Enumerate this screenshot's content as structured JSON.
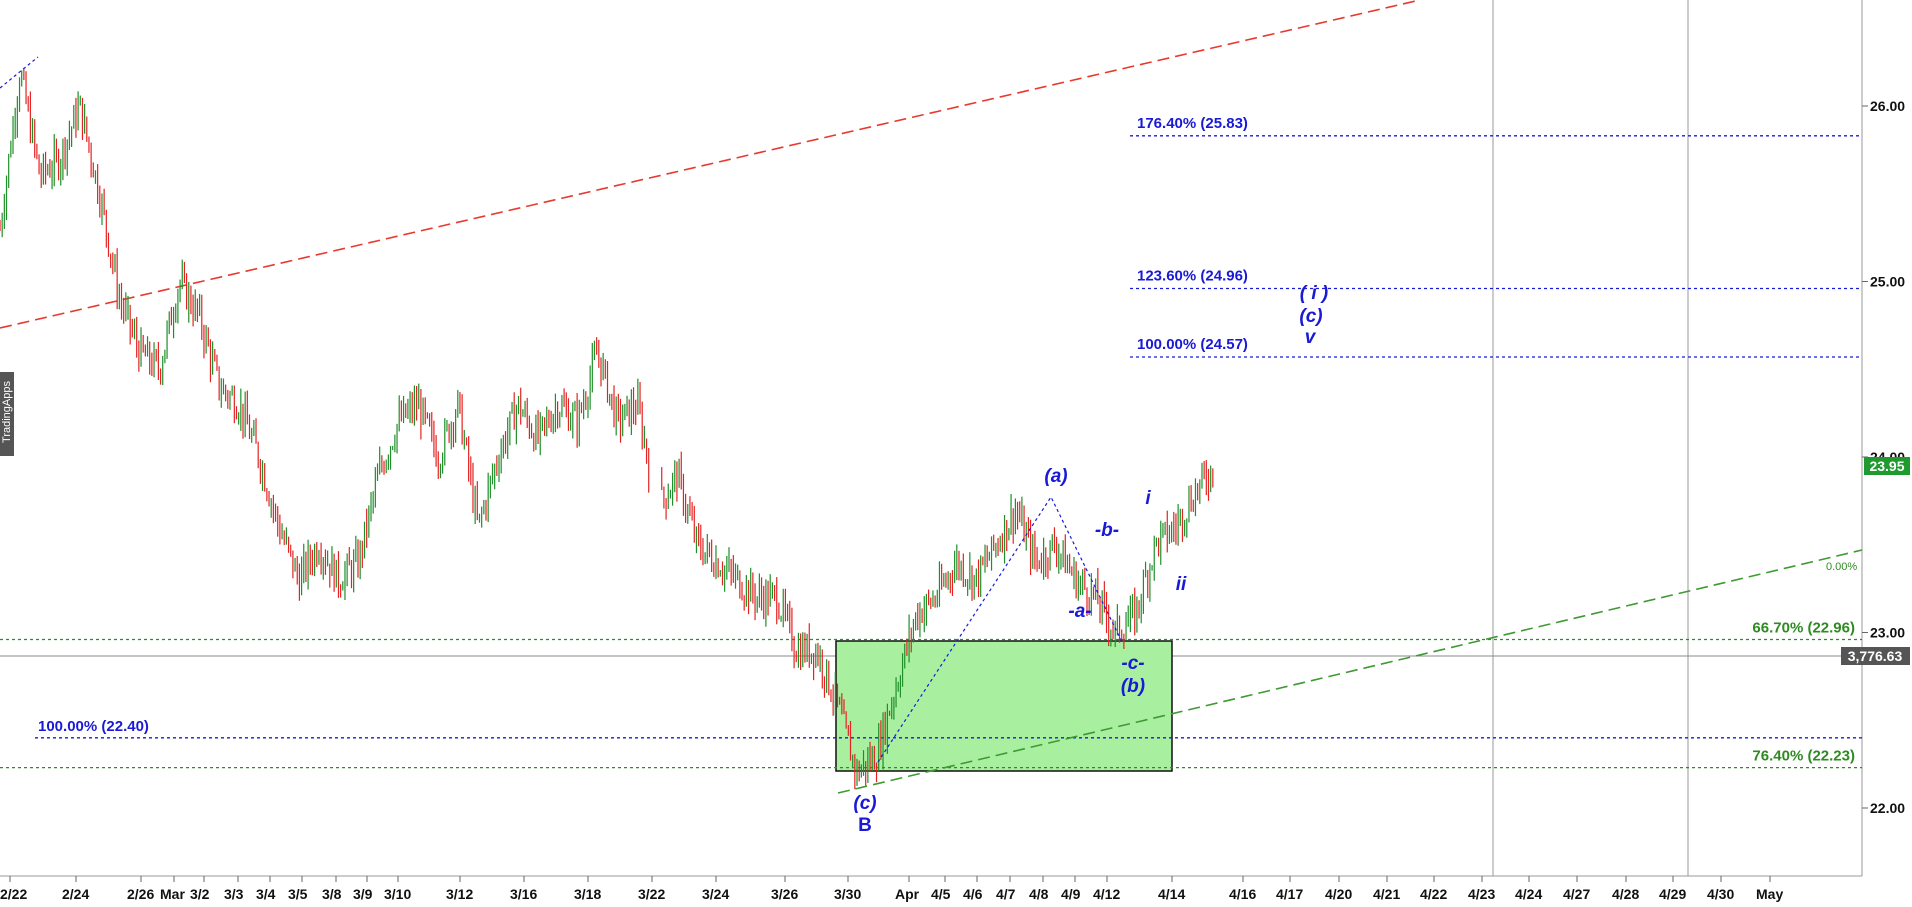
{
  "watermark": "TradingApps",
  "chart_data": {
    "type": "candlestick",
    "title": "",
    "x_ticks": [
      "2/22",
      "2/24",
      "2/26",
      "Mar",
      "3/2",
      "3/3",
      "3/4",
      "3/5",
      "3/8",
      "3/9",
      "3/10",
      "3/12",
      "3/16",
      "3/18",
      "3/22",
      "3/24",
      "3/26",
      "3/30",
      "Apr",
      "4/5",
      "4/6",
      "4/7",
      "4/8",
      "4/9",
      "4/12",
      "4/14",
      "4/16",
      "4/17",
      "4/20",
      "4/21",
      "4/22",
      "4/23",
      "4/24",
      "4/27",
      "4/28",
      "4/29",
      "4/30",
      "May"
    ],
    "y_ticks": [
      22.0,
      23.0,
      24.0,
      25.0,
      26.0
    ],
    "ylim": [
      21.6,
      26.5
    ],
    "last_price": "23.95",
    "crosshair_value": "3,776.63",
    "fib_levels": [
      {
        "label": "176.40% (25.83)",
        "value": 25.83,
        "color": "#1a1ad6"
      },
      {
        "label": "123.60% (24.96)",
        "value": 24.96,
        "color": "#1a1ad6"
      },
      {
        "label": "100.00% (24.57)",
        "value": 24.57,
        "color": "#1a1ad6"
      },
      {
        "label": "100.00% (22.40)",
        "value": 22.4,
        "color": "#1a1ad6"
      },
      {
        "label": "66.70% (22.96)",
        "value": 22.96,
        "color": "#2e8b22"
      },
      {
        "label": "76.40% (22.23)",
        "value": 22.23,
        "color": "#2e8b22"
      }
    ],
    "trendline_label": "0.00%",
    "target_zone": {
      "from": 22.23,
      "to": 22.96
    },
    "wave_labels": [
      "(a)",
      "-a-",
      "-b-",
      "-c-",
      "(b)",
      "(c)",
      "B",
      "i",
      "ii",
      "( i )",
      "(c)",
      "v"
    ],
    "series": [
      {
        "values": [
          25.3,
          26.2,
          25.6,
          25.7,
          26.0,
          25.5,
          24.9,
          24.6,
          24.5,
          25.0,
          24.8,
          24.4,
          24.3,
          24.0,
          23.6,
          23.3,
          23.5,
          23.3,
          23.4,
          23.9,
          24.2,
          24.3,
          24.0,
          24.3,
          23.6,
          24.0,
          24.3,
          24.1,
          24.3,
          24.2,
          24.6,
          24.2,
          24.3,
          23.7,
          23.9,
          23.5,
          23.4,
          23.3,
          23.2,
          23.2,
          22.9,
          22.9,
          22.6,
          22.2,
          22.3,
          22.7,
          23.1,
          23.2,
          23.4,
          23.3,
          23.5,
          23.7,
          23.4,
          23.5,
          23.3,
          23.2,
          23.0,
          23.1,
          23.5,
          23.6,
          23.8,
          23.95
        ]
      }
    ]
  }
}
